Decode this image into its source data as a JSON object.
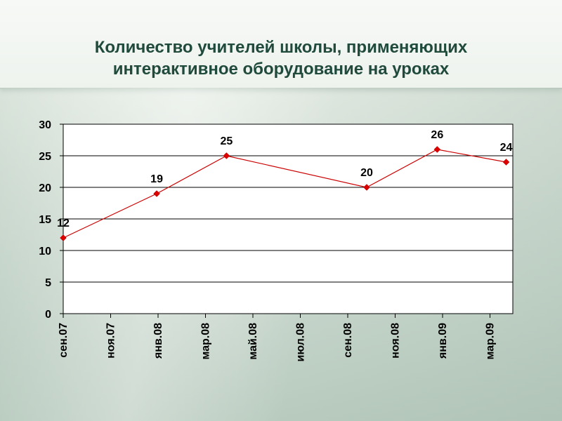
{
  "slide": {
    "title": "Количество учителей школы, применяющих\nинтерактивное оборудование на уроках"
  },
  "chart_data": {
    "type": "line",
    "title": "Количество учителей школы, применяющих интерактивное оборудование на уроках",
    "xlabel": "",
    "ylabel": "",
    "categories": [
      "сен.07",
      "ноя.07",
      "янв.08",
      "мар.08",
      "май.08",
      "июл.08",
      "сен.08",
      "ноя.08",
      "янв.09",
      "мар.09"
    ],
    "date_range": [
      "2007-09-01",
      "2009-04-01"
    ],
    "series": [
      {
        "name": "",
        "color": "#cc0000",
        "points": [
          {
            "date": "2007-09-01",
            "value": 12
          },
          {
            "date": "2008-01-01",
            "value": 19
          },
          {
            "date": "2008-04-01",
            "value": 25
          },
          {
            "date": "2008-10-01",
            "value": 20
          },
          {
            "date": "2009-01-01",
            "value": 26
          },
          {
            "date": "2009-04-01",
            "value": 24
          }
        ]
      }
    ],
    "ylim": [
      0,
      30
    ],
    "yticks": [
      0,
      5,
      10,
      15,
      20,
      25,
      30
    ],
    "grid": "horizontal",
    "legend": "none"
  }
}
